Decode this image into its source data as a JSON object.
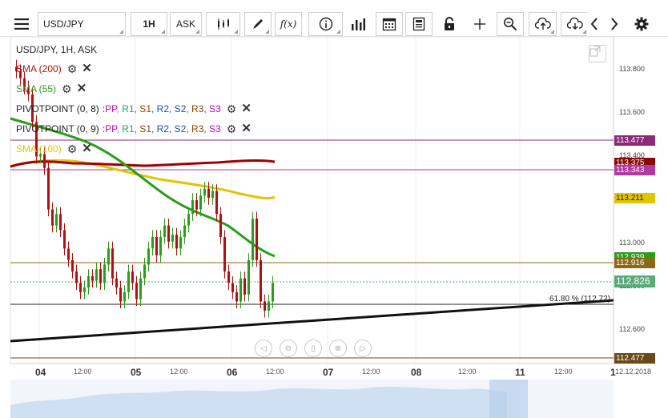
{
  "toolbar": {
    "menu_icon": "hamburger-menu-icon",
    "symbol": "USD/JPY",
    "timeframe": "1H",
    "price_type": "ASK",
    "formula": "f(x)"
  },
  "legend": {
    "title": "USD/JPY, 1H, ASK",
    "items": [
      {
        "label": "SMA (200)",
        "color": "#b01010"
      },
      {
        "label": "SMA (55)",
        "color": "#2a9d1a"
      },
      {
        "label": "PIVOTPOINT (0, 8)",
        "color": "#222222"
      },
      {
        "label": "PIVOTPOINT (0, 9)",
        "color": "#222222"
      },
      {
        "label": "SMA (100)",
        "color": "#e2c400"
      }
    ],
    "pivot_suffix": [
      {
        "text": "PP",
        "color": "#c000c0"
      },
      {
        "text": "R1",
        "color": "#1e9e6e"
      },
      {
        "text": "S1",
        "color": "#8b4500"
      },
      {
        "text": "R2",
        "color": "#1a4fa0"
      },
      {
        "text": "S2",
        "color": "#1a4fa0"
      },
      {
        "text": "R3",
        "color": "#8b4500"
      },
      {
        "text": "S3",
        "color": "#c000c0"
      }
    ]
  },
  "price_axis": {
    "ticks": [
      "113.800",
      "113.600",
      "113.400",
      "113.000",
      "112.800",
      "112.600"
    ],
    "labels": [
      {
        "text": "113.477",
        "bg": "#8a2a7a"
      },
      {
        "text": "113.375",
        "bg": "#8b0a0a"
      },
      {
        "text": "113.343",
        "bg": "#b03aa0"
      },
      {
        "text": "113.211",
        "bg": "#e2c400"
      },
      {
        "text": "112.939",
        "bg": "#2a9d1a"
      },
      {
        "text": "112.916",
        "bg": "#8a6a1a"
      },
      {
        "text": "112.826",
        "bg": "#5aaa7a"
      },
      {
        "text": "112.477",
        "bg": "#6a4a1a"
      }
    ]
  },
  "fib_label": "61.80 % (112.72)",
  "time_axis": {
    "labels": [
      "04",
      "12:00",
      "05",
      "12:00",
      "06",
      "12:00",
      "07",
      "12:00",
      "08",
      "12:00",
      "11",
      "12:00",
      "1",
      "12.12.2018"
    ]
  },
  "colors": {
    "bull": "#2a9d1a",
    "bear": "#b01010",
    "sma200": "#a00000",
    "sma55": "#2a9d1a",
    "sma100": "#e2c400"
  },
  "chart_data": {
    "type": "candlestick",
    "symbol": "USD/JPY",
    "ylim": [
      112.45,
      113.87
    ],
    "close_series": [
      113.72,
      113.69,
      113.65,
      113.62,
      113.5,
      113.35,
      113.36,
      113.3,
      113.12,
      113.05,
      113.1,
      113.03,
      112.95,
      112.9,
      112.85,
      112.8,
      112.76,
      112.78,
      112.83,
      112.81,
      112.86,
      112.8,
      112.88,
      112.95,
      112.82,
      112.78,
      112.72,
      112.76,
      112.85,
      112.8,
      112.73,
      112.82,
      112.88,
      112.95,
      113.0,
      112.92,
      113.0,
      113.05,
      112.98,
      113.01,
      112.95,
      113.0,
      113.05,
      113.1,
      113.16,
      113.12,
      113.18,
      113.21,
      113.17,
      113.2,
      113.1,
      113.0,
      112.85,
      112.8,
      112.76,
      112.72,
      112.82,
      112.75,
      112.9,
      113.08,
      112.9,
      112.72,
      112.68,
      112.72,
      112.8
    ]
  }
}
